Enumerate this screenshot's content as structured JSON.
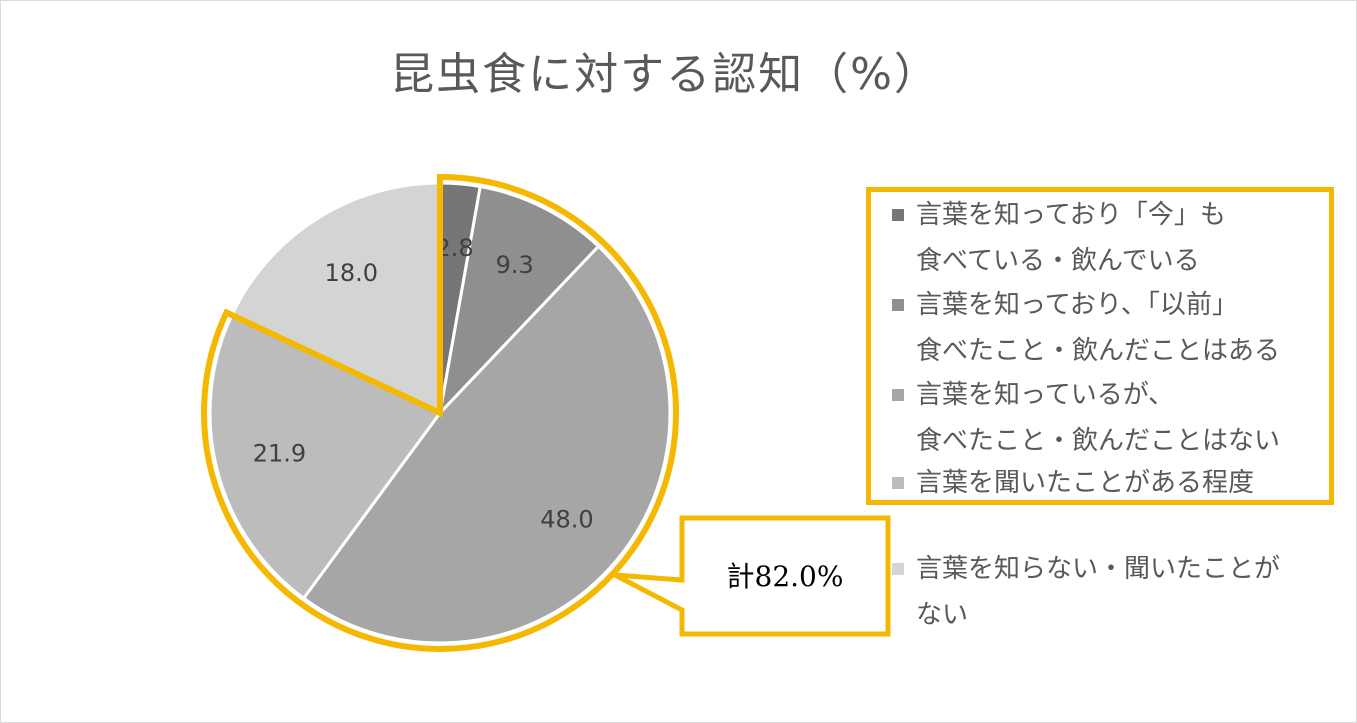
{
  "chart_data": {
    "type": "pie",
    "title": "昆虫食に対する認知（%）",
    "categories": [
      "言葉を知っており「今」も食べている・飲んでいる",
      "言葉を知っており、「以前」食べたこと・飲んだことはある",
      "言葉を知っているが、食べたこと・飲んだことはない",
      "言葉を聞いたことがある程度",
      "言葉を知らない・聞いたことがない"
    ],
    "values": [
      2.8,
      9.3,
      48.0,
      21.9,
      18.0
    ],
    "value_labels": [
      "2.8",
      "9.3",
      "48.0",
      "21.9",
      "18.0"
    ],
    "colors": [
      "#767676",
      "#8f8f8f",
      "#a6a6a6",
      "#bcbcbc",
      "#d4d4d4"
    ],
    "legend_placement": "right",
    "legend_lines": [
      [
        "言葉を知っており「今」も",
        "食べている・飲んでいる"
      ],
      [
        "言葉を知っており、「以前」",
        "食べたこと・飲んだことはある"
      ],
      [
        "言葉を知っているが、",
        "食べたこと・飲んだことはない"
      ],
      [
        "言葉を聞いたことがある程度"
      ],
      [
        "言葉を知らない・聞いたことが",
        "ない"
      ]
    ],
    "highlight_color": "#f5b800",
    "callout": "計82.0%"
  }
}
